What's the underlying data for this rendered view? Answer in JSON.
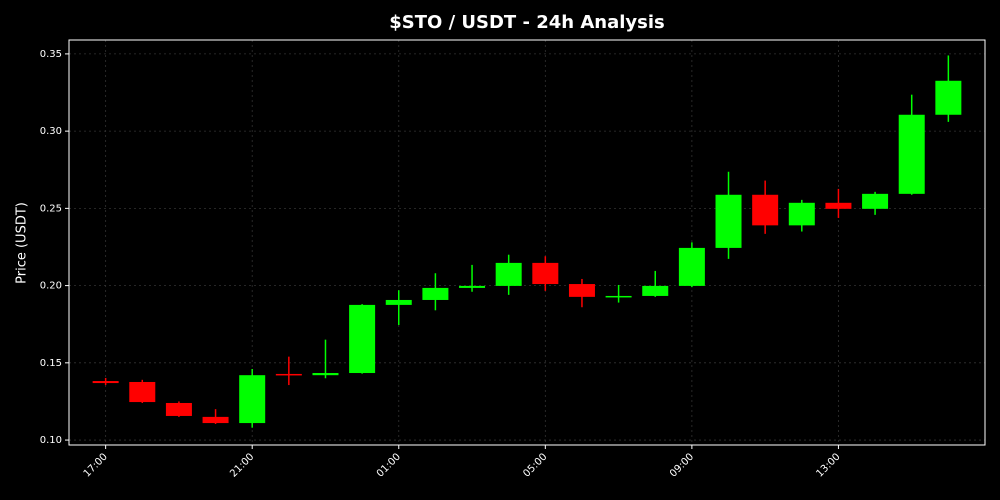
{
  "chart_data": {
    "type": "candlestick",
    "title": "$STO / USDT - 24h Analysis",
    "y_label": "Price (USDT)",
    "categories": [
      "17:00",
      null,
      null,
      null,
      "21:00",
      null,
      null,
      null,
      "01:00",
      null,
      null,
      null,
      "05:00",
      null,
      null,
      null,
      "09:00",
      null,
      null,
      null,
      "13:00",
      null,
      null,
      null
    ],
    "open": [
      0.1382,
      0.1376,
      0.124,
      0.115,
      0.111,
      0.1428,
      0.142,
      0.1434,
      0.1875,
      0.1907,
      0.1985,
      0.1998,
      0.2147,
      0.201,
      0.1927,
      0.1933,
      0.1998,
      0.2244,
      0.2588,
      0.239,
      0.2536,
      0.2497,
      0.2594,
      0.3106
    ],
    "high": [
      0.1402,
      0.139,
      0.125,
      0.12,
      0.146,
      0.154,
      0.165,
      0.188,
      0.197,
      0.208,
      0.2134,
      0.22,
      0.219,
      0.2043,
      0.2004,
      0.2095,
      0.228,
      0.2737,
      0.268,
      0.2555,
      0.2626,
      0.2607,
      0.3236,
      0.349
    ],
    "low": [
      0.1356,
      0.124,
      0.115,
      0.1104,
      0.108,
      0.1356,
      0.14,
      0.143,
      0.1745,
      0.184,
      0.196,
      0.194,
      0.1966,
      0.186,
      0.189,
      0.1927,
      0.199,
      0.2173,
      0.2335,
      0.235,
      0.2438,
      0.2458,
      0.2588,
      0.306
    ],
    "close": [
      0.1369,
      0.1246,
      0.1156,
      0.111,
      0.142,
      0.1422,
      0.1434,
      0.1875,
      0.1907,
      0.1985,
      0.1998,
      0.2147,
      0.201,
      0.1927,
      0.1933,
      0.1998,
      0.2244,
      0.2588,
      0.239,
      0.2536,
      0.2497,
      0.2594,
      0.3106,
      0.3326
    ],
    "up_color": "#00ff00",
    "down_color": "#ff0000",
    "ylim": [
      0.0968,
      0.359
    ],
    "yticks": [
      {
        "value": 0.1,
        "label": "0.10"
      },
      0.15,
      {
        "value": 0.2,
        "label": "0.20"
      },
      0.25,
      {
        "value": 0.3,
        "label": "0.30"
      },
      0.35
    ],
    "grid": true
  }
}
